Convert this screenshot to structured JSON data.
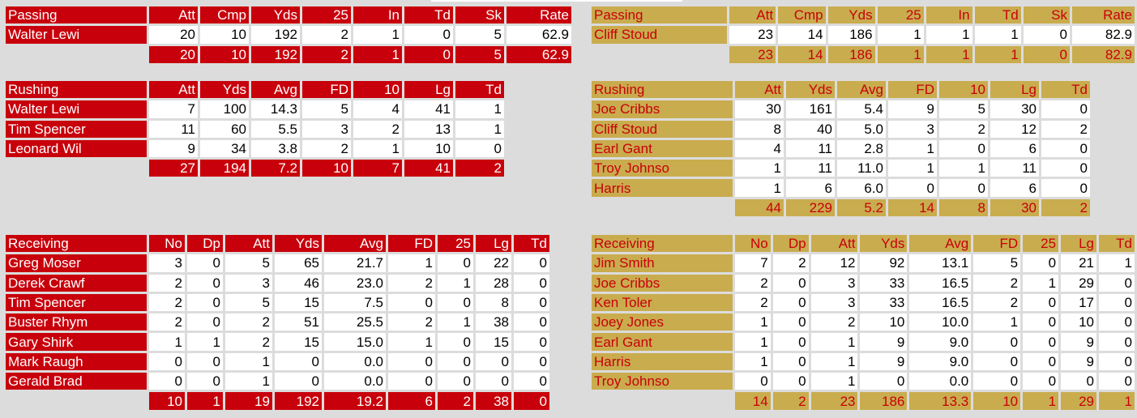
{
  "home": {
    "passing": {
      "header": [
        "Passing",
        "Att",
        "Cmp",
        "Yds",
        "25",
        "In",
        "Td",
        "Sk",
        "Rate"
      ],
      "rows": [
        [
          "Walter Lewi",
          "20",
          "10",
          "192",
          "2",
          "1",
          "0",
          "5",
          "62.9"
        ]
      ],
      "total": [
        "",
        "20",
        "10",
        "192",
        "2",
        "1",
        "0",
        "5",
        "62.9"
      ]
    },
    "rushing": {
      "header": [
        "Rushing",
        "Att",
        "Yds",
        "Avg",
        "FD",
        "10",
        "Lg",
        "Td"
      ],
      "rows": [
        [
          "Walter Lewi",
          "7",
          "100",
          "14.3",
          "5",
          "4",
          "41",
          "1"
        ],
        [
          "Tim Spencer",
          "11",
          "60",
          "5.5",
          "3",
          "2",
          "13",
          "1"
        ],
        [
          "Leonard Wil",
          "9",
          "34",
          "3.8",
          "2",
          "1",
          "10",
          "0"
        ]
      ],
      "total": [
        "",
        "27",
        "194",
        "7.2",
        "10",
        "7",
        "41",
        "2"
      ]
    },
    "receiving": {
      "header": [
        "Receiving",
        "No",
        "Dp",
        "Att",
        "Yds",
        "Avg",
        "FD",
        "25",
        "Lg",
        "Td"
      ],
      "rows": [
        [
          "Greg Moser",
          "3",
          "0",
          "5",
          "65",
          "21.7",
          "1",
          "0",
          "22",
          "0"
        ],
        [
          "Derek Crawf",
          "2",
          "0",
          "3",
          "46",
          "23.0",
          "2",
          "1",
          "28",
          "0"
        ],
        [
          "Tim Spencer",
          "2",
          "0",
          "5",
          "15",
          "7.5",
          "0",
          "0",
          "8",
          "0"
        ],
        [
          "Buster Rhym",
          "2",
          "0",
          "2",
          "51",
          "25.5",
          "2",
          "1",
          "38",
          "0"
        ],
        [
          "Gary Shirk",
          "1",
          "1",
          "2",
          "15",
          "15.0",
          "1",
          "0",
          "15",
          "0"
        ],
        [
          "Mark Raugh",
          "0",
          "0",
          "1",
          "0",
          "0.0",
          "0",
          "0",
          "0",
          "0"
        ],
        [
          "Gerald Brad",
          "0",
          "0",
          "1",
          "0",
          "0.0",
          "0",
          "0",
          "0",
          "0"
        ]
      ],
      "total": [
        "",
        "10",
        "1",
        "19",
        "192",
        "19.2",
        "6",
        "2",
        "38",
        "0"
      ]
    }
  },
  "away": {
    "passing": {
      "header": [
        "Passing",
        "Att",
        "Cmp",
        "Yds",
        "25",
        "In",
        "Td",
        "Sk",
        "Rate"
      ],
      "rows": [
        [
          "Cliff Stoud",
          "23",
          "14",
          "186",
          "1",
          "1",
          "1",
          "0",
          "82.9"
        ]
      ],
      "total": [
        "",
        "23",
        "14",
        "186",
        "1",
        "1",
        "1",
        "0",
        "82.9"
      ]
    },
    "rushing": {
      "header": [
        "Rushing",
        "Att",
        "Yds",
        "Avg",
        "FD",
        "10",
        "Lg",
        "Td"
      ],
      "rows": [
        [
          "Joe Cribbs",
          "30",
          "161",
          "5.4",
          "9",
          "5",
          "30",
          "0"
        ],
        [
          "Cliff Stoud",
          "8",
          "40",
          "5.0",
          "3",
          "2",
          "12",
          "2"
        ],
        [
          "Earl Gant",
          "4",
          "11",
          "2.8",
          "1",
          "0",
          "6",
          "0"
        ],
        [
          "Troy Johnso",
          "1",
          "11",
          "11.0",
          "1",
          "1",
          "11",
          "0"
        ],
        [
          "Harris",
          "1",
          "6",
          "6.0",
          "0",
          "0",
          "6",
          "0"
        ]
      ],
      "total": [
        "",
        "44",
        "229",
        "5.2",
        "14",
        "8",
        "30",
        "2"
      ]
    },
    "receiving": {
      "header": [
        "Receiving",
        "No",
        "Dp",
        "Att",
        "Yds",
        "Avg",
        "FD",
        "25",
        "Lg",
        "Td"
      ],
      "rows": [
        [
          "Jim Smith",
          "7",
          "2",
          "12",
          "92",
          "13.1",
          "5",
          "0",
          "21",
          "1"
        ],
        [
          "Joe Cribbs",
          "2",
          "0",
          "3",
          "33",
          "16.5",
          "2",
          "1",
          "29",
          "0"
        ],
        [
          "Ken Toler",
          "2",
          "0",
          "3",
          "33",
          "16.5",
          "2",
          "0",
          "17",
          "0"
        ],
        [
          "Joey Jones",
          "1",
          "0",
          "2",
          "10",
          "10.0",
          "1",
          "0",
          "10",
          "0"
        ],
        [
          "Earl Gant",
          "1",
          "0",
          "1",
          "9",
          "9.0",
          "0",
          "0",
          "9",
          "0"
        ],
        [
          "Harris",
          "1",
          "0",
          "1",
          "9",
          "9.0",
          "0",
          "0",
          "9",
          "0"
        ],
        [
          "Troy Johnso",
          "0",
          "0",
          "1",
          "0",
          "0.0",
          "0",
          "0",
          "0",
          "0"
        ]
      ],
      "total": [
        "",
        "14",
        "2",
        "23",
        "186",
        "13.3",
        "10",
        "1",
        "29",
        "1"
      ]
    }
  },
  "colors": {
    "home_accent": "#c8000b",
    "away_accent": "#c9ac4e",
    "background": "#dcdcdc"
  }
}
